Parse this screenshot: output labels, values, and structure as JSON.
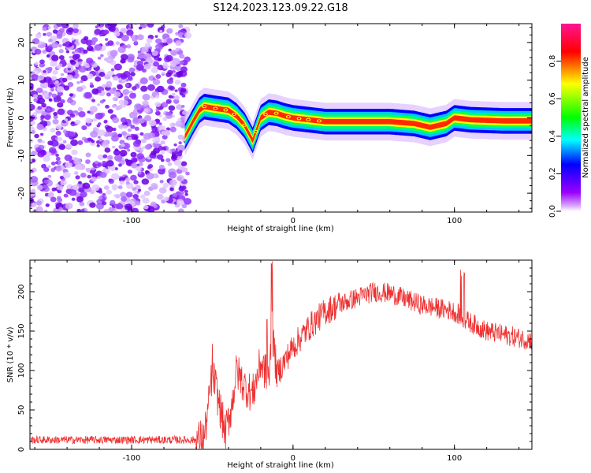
{
  "figure": {
    "title": "S124.2023.123.09.22.G18"
  },
  "chart_data": [
    {
      "type": "heatmap",
      "xlabel": "Height of straight line (km)",
      "ylabel": "Frequency (Hz)",
      "xlim": [
        -163,
        148
      ],
      "ylim": [
        -25,
        25
      ],
      "xticks": [
        -100,
        0,
        100
      ],
      "yticks": [
        -20,
        -10,
        0,
        10,
        20
      ],
      "colorbar": {
        "label": "Normalized spectral amplitude",
        "range": [
          0,
          1
        ],
        "ticks": [
          "0.0",
          "0.2",
          "0.4",
          "0.6",
          "0.8"
        ],
        "colormap": [
          "#ffffff",
          "#b000ff",
          "#0000ff",
          "#00ffff",
          "#00ff00",
          "#ffff00",
          "#ff0000",
          "#ff1493"
        ]
      },
      "ridge": {
        "description_x_km": [
          -67,
          -62,
          -58,
          -55,
          -48,
          -40,
          -35,
          -30,
          -25,
          -20,
          -15,
          -10,
          -5,
          0,
          10,
          20,
          40,
          60,
          75,
          85,
          95,
          100,
          110,
          130,
          148
        ],
        "frequency_hz": [
          -5,
          -1,
          2,
          3,
          2.5,
          2,
          0.5,
          -2,
          -6,
          0,
          1.5,
          1.2,
          0.5,
          0,
          -0.5,
          -1,
          -1,
          -1,
          -1.5,
          -2.5,
          -1.5,
          0,
          -0.5,
          -0.8,
          -0.8
        ]
      },
      "noise_region_x_km": [
        -163,
        -65
      ]
    },
    {
      "type": "line",
      "xlabel": "Height of straight line (km)",
      "ylabel": "SNR (10 * v/v)",
      "xlim": [
        -163,
        148
      ],
      "ylim": [
        0,
        240
      ],
      "xticks": [
        -100,
        0,
        100
      ],
      "yticks": [
        0,
        50,
        100,
        150,
        200
      ],
      "color": "#ee3030",
      "anchors": {
        "x": [
          -163,
          -60,
          -55,
          -52,
          -50,
          -45,
          -42,
          -38,
          -35,
          -30,
          -25,
          -20,
          -15,
          -13,
          -10,
          0,
          10,
          20,
          30,
          50,
          60,
          80,
          100,
          106,
          120,
          148
        ],
        "y": [
          12,
          12,
          15,
          60,
          100,
          50,
          20,
          55,
          100,
          80,
          70,
          110,
          90,
          150,
          95,
          130,
          155,
          175,
          185,
          200,
          198,
          183,
          175,
          165,
          150,
          138
        ]
      }
    }
  ]
}
